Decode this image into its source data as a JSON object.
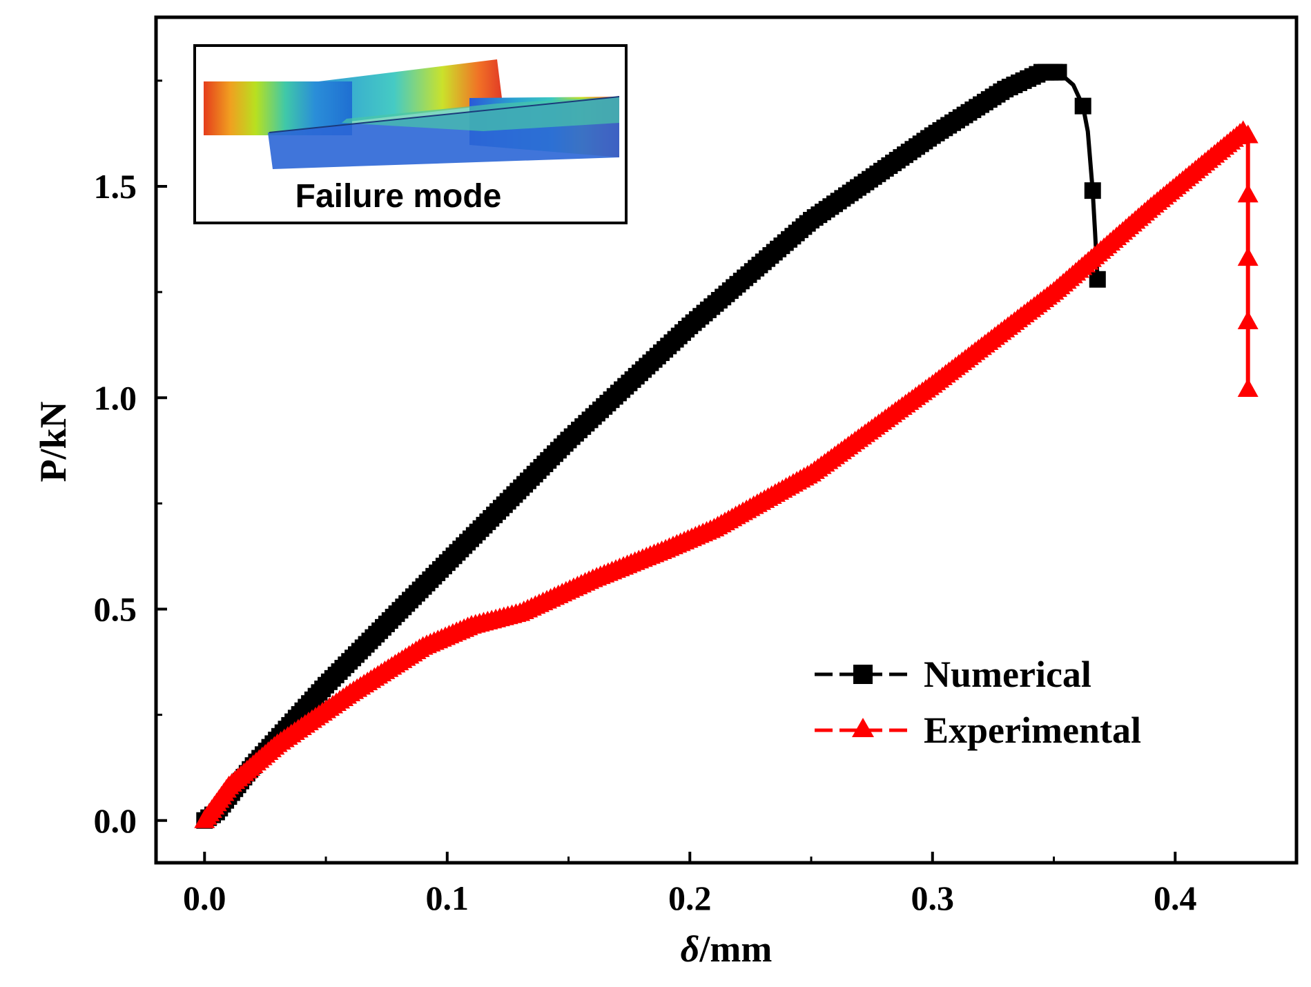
{
  "chart_data": {
    "type": "line",
    "xlabel_symbol": "δ",
    "xlabel_unit": "/mm",
    "ylabel": "P/kN",
    "xlim": [
      -0.02,
      0.45
    ],
    "ylim": [
      -0.1,
      1.9
    ],
    "xticks": [
      "0.0",
      "0.1",
      "0.2",
      "0.3",
      "0.4"
    ],
    "xtick_values": [
      0.0,
      0.1,
      0.2,
      0.3,
      0.4
    ],
    "yticks": [
      "0.0",
      "0.5",
      "1.0",
      "1.5"
    ],
    "ytick_values": [
      0.0,
      0.5,
      1.0,
      1.5
    ],
    "grid": false,
    "legend_position": "lower-right",
    "inset": {
      "label": "Failure mode"
    },
    "series": [
      {
        "name": "Numerical",
        "color": "#000000",
        "marker": "square",
        "x": [
          0.0,
          0.005,
          0.02,
          0.05,
          0.1,
          0.15,
          0.2,
          0.25,
          0.3,
          0.33,
          0.345,
          0.352,
          0.358,
          0.362,
          0.364,
          0.366,
          0.367,
          0.368
        ],
        "y": [
          0.0,
          0.02,
          0.13,
          0.32,
          0.61,
          0.9,
          1.17,
          1.42,
          1.62,
          1.73,
          1.77,
          1.77,
          1.74,
          1.69,
          1.63,
          1.49,
          1.39,
          1.28
        ]
      },
      {
        "name": "Experimental",
        "color": "#ff0000",
        "marker": "triangle",
        "x": [
          0.0,
          0.01,
          0.03,
          0.06,
          0.09,
          0.11,
          0.13,
          0.16,
          0.19,
          0.21,
          0.25,
          0.3,
          0.35,
          0.39,
          0.428,
          0.43,
          0.43,
          0.43,
          0.43,
          0.43
        ],
        "y": [
          0.0,
          0.08,
          0.18,
          0.3,
          0.41,
          0.46,
          0.49,
          0.57,
          0.64,
          0.69,
          0.82,
          1.03,
          1.25,
          1.45,
          1.63,
          1.62,
          1.48,
          1.33,
          1.18,
          1.02
        ]
      }
    ]
  }
}
